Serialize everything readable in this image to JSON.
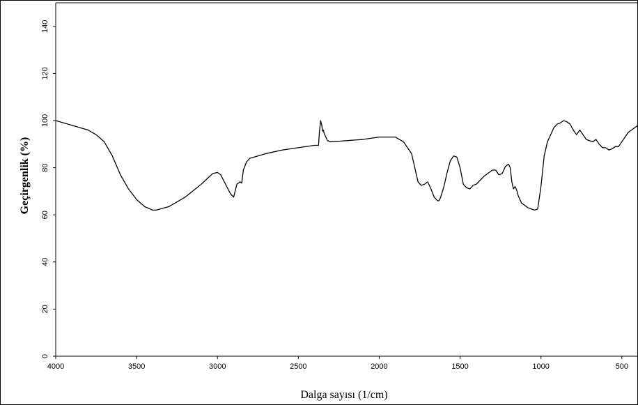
{
  "chart_data": {
    "type": "line",
    "title": "",
    "xlabel": "Dalga sayısı (1/cm)",
    "ylabel": "Geçirgenlik (%)",
    "xlim": [
      4000,
      400
    ],
    "x_reversed": true,
    "ylim": [
      0,
      150
    ],
    "xticks": [
      4000,
      3500,
      3000,
      2500,
      2000,
      1500,
      1000,
      500
    ],
    "xtick_labels": [
      "4000",
      "3500",
      "3000",
      "2500",
      "2000",
      "1500",
      "1000",
      "500"
    ],
    "yticks": [
      0,
      20,
      40,
      60,
      80,
      100,
      120,
      140
    ],
    "ytick_labels": [
      "0",
      "20",
      "40",
      "60",
      "80",
      "100",
      "120",
      "140"
    ],
    "grid": false,
    "series": [
      {
        "x": [
          4000,
          3900,
          3800,
          3750,
          3700,
          3650,
          3600,
          3550,
          3500,
          3450,
          3400,
          3380,
          3300,
          3200,
          3100,
          3030,
          3000,
          2980,
          2950,
          2920,
          2900,
          2880,
          2860,
          2850,
          2840,
          2820,
          2800,
          2700,
          2600,
          2500,
          2400,
          2375,
          2370,
          2362,
          2355,
          2350,
          2345,
          2340,
          2330,
          2320,
          2300,
          2200,
          2100,
          2000,
          1900,
          1850,
          1800,
          1780,
          1760,
          1740,
          1720,
          1700,
          1680,
          1660,
          1640,
          1630,
          1620,
          1600,
          1580,
          1560,
          1540,
          1520,
          1500,
          1480,
          1460,
          1440,
          1420,
          1400,
          1350,
          1300,
          1280,
          1260,
          1240,
          1220,
          1200,
          1190,
          1180,
          1170,
          1160,
          1150,
          1140,
          1120,
          1100,
          1080,
          1060,
          1040,
          1020,
          1000,
          980,
          960,
          940,
          920,
          900,
          880,
          860,
          840,
          820,
          800,
          780,
          760,
          740,
          720,
          700,
          680,
          660,
          640,
          620,
          600,
          580,
          560,
          540,
          520,
          500,
          480,
          460,
          440,
          420,
          400
        ],
        "y": [
          100,
          98,
          96,
          94,
          91,
          85,
          77,
          71,
          66.5,
          63.5,
          62,
          62,
          63.5,
          67.5,
          73,
          77.5,
          78,
          77,
          73,
          69,
          67.5,
          73,
          74,
          73.5,
          79,
          82.5,
          84,
          86,
          87.5,
          88.5,
          89.5,
          89.5,
          95,
          100,
          98,
          95.5,
          96,
          94.5,
          93,
          91.5,
          91,
          91.5,
          92,
          93,
          93,
          91,
          86,
          80,
          74,
          72.5,
          73,
          74,
          71,
          67.5,
          66,
          66,
          67.5,
          72,
          78,
          83,
          85,
          84.5,
          80,
          73,
          71.5,
          71,
          72.5,
          73,
          76.5,
          79,
          79,
          77,
          77.5,
          80.5,
          81.5,
          80,
          74,
          71,
          72,
          70.5,
          68,
          65,
          64,
          63,
          62.5,
          62,
          62.5,
          72,
          85,
          91,
          94,
          97,
          98.5,
          99,
          100,
          99.5,
          98.5,
          96,
          94,
          96,
          94,
          92,
          91.5,
          91,
          92,
          90,
          88.5,
          88.5,
          87.5,
          88,
          89,
          89,
          91,
          93,
          95,
          96,
          97,
          98
        ]
      }
    ]
  }
}
